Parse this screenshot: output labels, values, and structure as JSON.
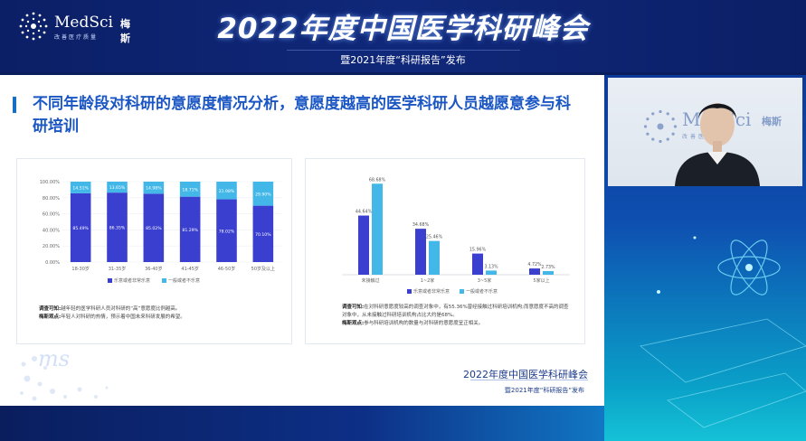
{
  "header": {
    "logo_text": "MedSci",
    "logo_cn": "梅斯",
    "logo_sub": "改善医疗质量",
    "title": "2022年度中国医学科研峰会",
    "subtitle": "暨2021年度“科研报告”发布"
  },
  "slide": {
    "title": "不同年龄段对科研的意愿度情况分析，意愿度越高的医学科研人员越愿意参与科研培训",
    "footer_title": "2022年度中国医学科研峰会",
    "footer_sub": "暨2021年度“科研报告”发布",
    "watermark": "ms",
    "left_note": {
      "label1": "调查可知:",
      "text1": "越年轻的医学科研人员对科研的“高”意愿度比例越高。",
      "label2": "梅斯观点:",
      "text2": "年轻人对科研的热情，预示着中国未来科研发展的希望。"
    },
    "right_note": {
      "label1": "调查可知:",
      "text1": "在对科研意愿度较高的调查对象中，有55.36%曾经接触过科研培训机构;而意愿度不高的调查对象中，从未接触过科研培训机构占比大约是68%。",
      "label2": "梅斯观点:",
      "text2": "参与科研培训机构的数量与对科研的意愿度呈正相关。"
    }
  },
  "video": {
    "logo_text": "MedSci",
    "logo_cn": "梅斯",
    "logo_sub": "改善医疗质量"
  },
  "colors": {
    "series_high": "#3a3fcf",
    "series_low": "#43b8e8",
    "accent": "#1a56c4"
  },
  "chart_data": [
    {
      "type": "bar",
      "stacked": true,
      "categories": [
        "18-30岁",
        "31-35岁",
        "36-40岁",
        "41-45岁",
        "46-50岁",
        "50岁及以上"
      ],
      "series": [
        {
          "name": "乐意或者非常乐意",
          "values": [
            85.49,
            86.35,
            85.02,
            81.29,
            78.02,
            70.1
          ],
          "labels": [
            "85.49%",
            "86.35%",
            "85.02%",
            "81.29%",
            "78.02%",
            "70.10%"
          ]
        },
        {
          "name": "一般或者不乐意",
          "values": [
            14.51,
            13.65,
            14.98,
            18.71,
            21.98,
            29.9
          ],
          "labels": [
            "14.51%",
            "13.65%",
            "14.98%",
            "18.71%",
            "21.98%",
            "29.90%"
          ]
        }
      ],
      "ylim": [
        0,
        100
      ],
      "yticks": [
        "0.00%",
        "20.00%",
        "40.00%",
        "60.00%",
        "80.00%",
        "100.00%"
      ],
      "legend": "bottom"
    },
    {
      "type": "bar",
      "categories": [
        "未接触过",
        "1~2家",
        "3~5家",
        "5家以上"
      ],
      "series": [
        {
          "name": "乐意或者非常乐意",
          "values": [
            44.64,
            34.68,
            15.96,
            4.72
          ],
          "labels": [
            "44.64%",
            "34.68%",
            "15.96%",
            "4.72%"
          ]
        },
        {
          "name": "一般或者不乐意",
          "values": [
            68.68,
            25.46,
            3.13,
            2.73
          ],
          "labels": [
            "68.68%",
            "25.46%",
            "3.13%",
            "2.73%"
          ]
        }
      ],
      "ylim": [
        0,
        75
      ],
      "legend": "bottom"
    }
  ]
}
